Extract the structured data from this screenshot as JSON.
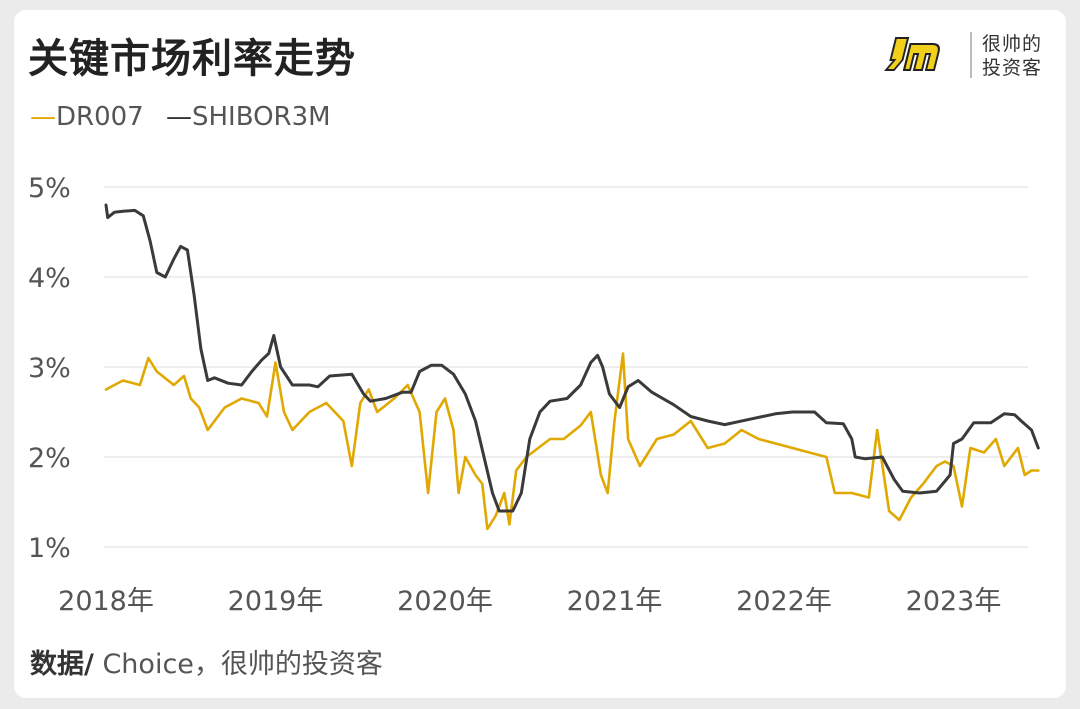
{
  "title": "关键市场利率走势",
  "legend": [
    {
      "mark": "—",
      "name": "DR007",
      "color": "#e0a800"
    },
    {
      "mark": "—",
      "name": "SHIBOR3M",
      "color": "#3a3a3a"
    }
  ],
  "logo": {
    "line1": "很帅的",
    "line2": "投资客"
  },
  "source": {
    "prefix": "数据/",
    "text": " Choice，很帅的投资客"
  },
  "chart_data": {
    "type": "line",
    "ylim": [
      1,
      5
    ],
    "xlim": [
      2018.0,
      2023.5
    ],
    "yticks": [
      {
        "v": 1,
        "label": "1%"
      },
      {
        "v": 2,
        "label": "2%"
      },
      {
        "v": 3,
        "label": "3%"
      },
      {
        "v": 4,
        "label": "4%"
      },
      {
        "v": 5,
        "label": "5%"
      }
    ],
    "xticks": [
      {
        "v": 2018,
        "label": "2018年"
      },
      {
        "v": 2019,
        "label": "2019年"
      },
      {
        "v": 2020,
        "label": "2020年"
      },
      {
        "v": 2021,
        "label": "2021年"
      },
      {
        "v": 2022,
        "label": "2022年"
      },
      {
        "v": 2023,
        "label": "2023年"
      }
    ],
    "grid": "horizontal",
    "series": [
      {
        "name": "SHIBOR3M",
        "color": "#3a3a3a",
        "points": [
          [
            2018.0,
            4.8
          ],
          [
            2018.01,
            4.66
          ],
          [
            2018.05,
            4.72
          ],
          [
            2018.1,
            4.73
          ],
          [
            2018.17,
            4.74
          ],
          [
            2018.22,
            4.68
          ],
          [
            2018.26,
            4.4
          ],
          [
            2018.3,
            4.05
          ],
          [
            2018.35,
            4.0
          ],
          [
            2018.4,
            4.2
          ],
          [
            2018.44,
            4.34
          ],
          [
            2018.48,
            4.3
          ],
          [
            2018.52,
            3.8
          ],
          [
            2018.56,
            3.2
          ],
          [
            2018.6,
            2.85
          ],
          [
            2018.64,
            2.88
          ],
          [
            2018.72,
            2.82
          ],
          [
            2018.8,
            2.8
          ],
          [
            2018.86,
            2.95
          ],
          [
            2018.92,
            3.08
          ],
          [
            2018.96,
            3.15
          ],
          [
            2018.99,
            3.35
          ],
          [
            2019.03,
            3.0
          ],
          [
            2019.1,
            2.8
          ],
          [
            2019.2,
            2.8
          ],
          [
            2019.25,
            2.78
          ],
          [
            2019.32,
            2.9
          ],
          [
            2019.45,
            2.92
          ],
          [
            2019.52,
            2.7
          ],
          [
            2019.56,
            2.62
          ],
          [
            2019.65,
            2.65
          ],
          [
            2019.75,
            2.72
          ],
          [
            2019.8,
            2.72
          ],
          [
            2019.85,
            2.95
          ],
          [
            2019.92,
            3.02
          ],
          [
            2019.98,
            3.02
          ],
          [
            2020.05,
            2.92
          ],
          [
            2020.12,
            2.7
          ],
          [
            2020.18,
            2.4
          ],
          [
            2020.23,
            2.0
          ],
          [
            2020.28,
            1.6
          ],
          [
            2020.32,
            1.4
          ],
          [
            2020.4,
            1.4
          ],
          [
            2020.45,
            1.6
          ],
          [
            2020.5,
            2.2
          ],
          [
            2020.56,
            2.5
          ],
          [
            2020.62,
            2.62
          ],
          [
            2020.72,
            2.65
          ],
          [
            2020.8,
            2.8
          ],
          [
            2020.86,
            3.05
          ],
          [
            2020.9,
            3.13
          ],
          [
            2020.93,
            3.0
          ],
          [
            2020.97,
            2.7
          ],
          [
            2021.03,
            2.55
          ],
          [
            2021.08,
            2.78
          ],
          [
            2021.14,
            2.85
          ],
          [
            2021.22,
            2.72
          ],
          [
            2021.35,
            2.58
          ],
          [
            2021.45,
            2.45
          ],
          [
            2021.55,
            2.4
          ],
          [
            2021.65,
            2.36
          ],
          [
            2021.8,
            2.42
          ],
          [
            2021.95,
            2.48
          ],
          [
            2022.05,
            2.5
          ],
          [
            2022.18,
            2.5
          ],
          [
            2022.25,
            2.38
          ],
          [
            2022.35,
            2.37
          ],
          [
            2022.4,
            2.2
          ],
          [
            2022.42,
            2.0
          ],
          [
            2022.48,
            1.98
          ],
          [
            2022.58,
            2.0
          ],
          [
            2022.65,
            1.75
          ],
          [
            2022.7,
            1.62
          ],
          [
            2022.8,
            1.6
          ],
          [
            2022.9,
            1.62
          ],
          [
            2022.98,
            1.8
          ],
          [
            2023.0,
            2.15
          ],
          [
            2023.05,
            2.2
          ],
          [
            2023.12,
            2.38
          ],
          [
            2023.22,
            2.38
          ],
          [
            2023.3,
            2.48
          ],
          [
            2023.36,
            2.47
          ],
          [
            2023.4,
            2.4
          ],
          [
            2023.46,
            2.3
          ],
          [
            2023.5,
            2.1
          ]
        ]
      },
      {
        "name": "DR007",
        "color": "#e0a800",
        "points": [
          [
            2018.0,
            2.75
          ],
          [
            2018.1,
            2.85
          ],
          [
            2018.2,
            2.8
          ],
          [
            2018.25,
            3.1
          ],
          [
            2018.3,
            2.95
          ],
          [
            2018.4,
            2.8
          ],
          [
            2018.46,
            2.9
          ],
          [
            2018.5,
            2.65
          ],
          [
            2018.55,
            2.55
          ],
          [
            2018.6,
            2.3
          ],
          [
            2018.7,
            2.55
          ],
          [
            2018.8,
            2.65
          ],
          [
            2018.9,
            2.6
          ],
          [
            2018.95,
            2.45
          ],
          [
            2019.0,
            3.05
          ],
          [
            2019.05,
            2.5
          ],
          [
            2019.1,
            2.3
          ],
          [
            2019.2,
            2.5
          ],
          [
            2019.3,
            2.6
          ],
          [
            2019.4,
            2.4
          ],
          [
            2019.45,
            1.9
          ],
          [
            2019.5,
            2.6
          ],
          [
            2019.55,
            2.75
          ],
          [
            2019.6,
            2.5
          ],
          [
            2019.7,
            2.65
          ],
          [
            2019.78,
            2.8
          ],
          [
            2019.85,
            2.5
          ],
          [
            2019.9,
            1.6
          ],
          [
            2019.95,
            2.5
          ],
          [
            2020.0,
            2.65
          ],
          [
            2020.05,
            2.3
          ],
          [
            2020.08,
            1.6
          ],
          [
            2020.12,
            2.0
          ],
          [
            2020.18,
            1.8
          ],
          [
            2020.22,
            1.7
          ],
          [
            2020.25,
            1.2
          ],
          [
            2020.3,
            1.35
          ],
          [
            2020.35,
            1.6
          ],
          [
            2020.38,
            1.25
          ],
          [
            2020.42,
            1.85
          ],
          [
            2020.48,
            2.0
          ],
          [
            2020.55,
            2.1
          ],
          [
            2020.62,
            2.2
          ],
          [
            2020.7,
            2.2
          ],
          [
            2020.8,
            2.35
          ],
          [
            2020.86,
            2.5
          ],
          [
            2020.92,
            1.8
          ],
          [
            2020.96,
            1.6
          ],
          [
            2021.0,
            2.4
          ],
          [
            2021.05,
            3.15
          ],
          [
            2021.08,
            2.2
          ],
          [
            2021.15,
            1.9
          ],
          [
            2021.25,
            2.2
          ],
          [
            2021.35,
            2.25
          ],
          [
            2021.45,
            2.4
          ],
          [
            2021.55,
            2.1
          ],
          [
            2021.65,
            2.15
          ],
          [
            2021.75,
            2.3
          ],
          [
            2021.85,
            2.2
          ],
          [
            2021.95,
            2.15
          ],
          [
            2022.05,
            2.1
          ],
          [
            2022.15,
            2.05
          ],
          [
            2022.25,
            2.0
          ],
          [
            2022.3,
            1.6
          ],
          [
            2022.4,
            1.6
          ],
          [
            2022.5,
            1.55
          ],
          [
            2022.55,
            2.3
          ],
          [
            2022.62,
            1.4
          ],
          [
            2022.68,
            1.3
          ],
          [
            2022.75,
            1.55
          ],
          [
            2022.82,
            1.7
          ],
          [
            2022.9,
            1.9
          ],
          [
            2022.95,
            1.95
          ],
          [
            2023.0,
            1.9
          ],
          [
            2023.05,
            1.45
          ],
          [
            2023.1,
            2.1
          ],
          [
            2023.18,
            2.05
          ],
          [
            2023.25,
            2.2
          ],
          [
            2023.3,
            1.9
          ],
          [
            2023.38,
            2.1
          ],
          [
            2023.42,
            1.8
          ],
          [
            2023.46,
            1.85
          ],
          [
            2023.5,
            1.85
          ]
        ]
      }
    ]
  }
}
